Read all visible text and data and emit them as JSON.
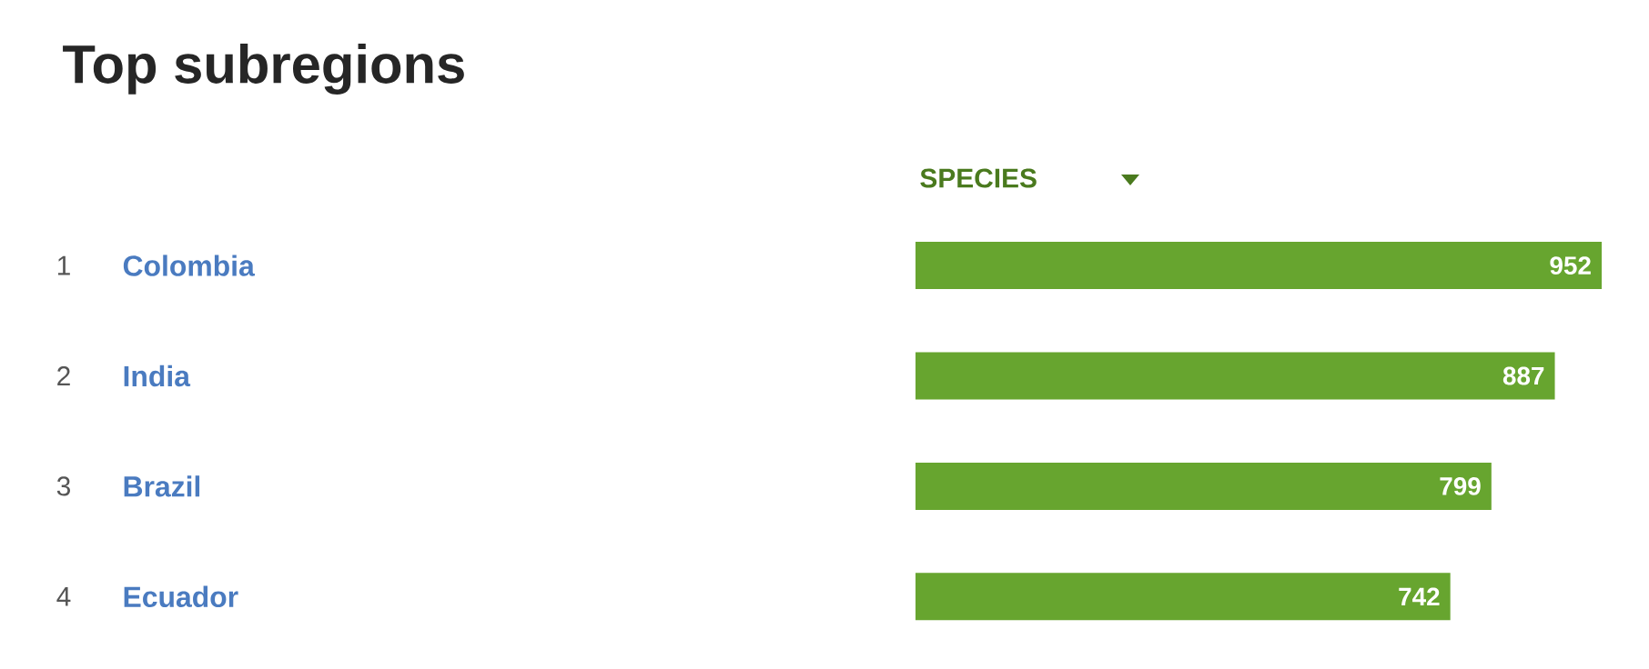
{
  "chart_data": {
    "type": "bar",
    "orientation": "horizontal",
    "title": "Top subregions",
    "xlabel": "SPECIES",
    "categories": [
      "Colombia",
      "India",
      "Brazil",
      "Ecuador"
    ],
    "values": [
      952,
      887,
      799,
      742
    ],
    "color": "#67a52f",
    "data_labels": true,
    "xlim": [
      0,
      952
    ],
    "annotations": [
      "1",
      "2",
      "3",
      "4"
    ]
  }
}
